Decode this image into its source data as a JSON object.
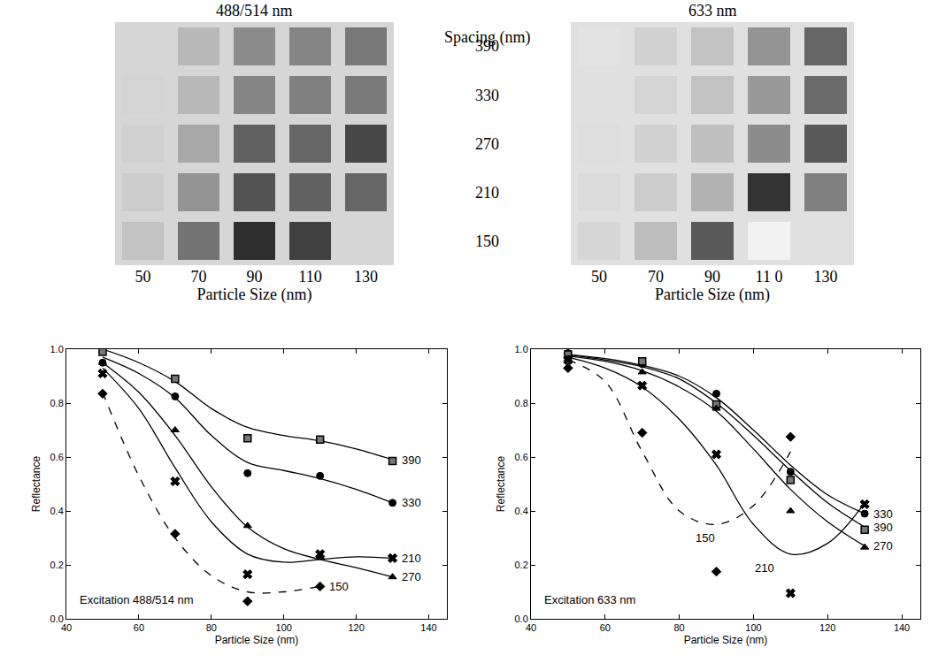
{
  "chart_data": [
    {
      "type": "heatmap",
      "title": "488/514 nm",
      "xlabel": "Particle Size (nm)",
      "ylabel": "Spacing (nm)",
      "categories": [
        "50",
        "70",
        "90",
        "110",
        "130"
      ],
      "rows": [
        390,
        330,
        270,
        210,
        150
      ],
      "cells": [
        [
          0.84,
          0.72,
          0.55,
          0.52,
          0.47
        ],
        [
          0.83,
          0.72,
          0.52,
          0.5,
          0.48
        ],
        [
          0.82,
          0.66,
          0.38,
          0.4,
          0.28
        ],
        [
          0.8,
          0.58,
          0.32,
          0.38,
          0.4
        ],
        [
          0.76,
          0.45,
          0.18,
          0.25,
          null
        ]
      ],
      "zlim": [
        0,
        1
      ],
      "tick_labels": "x"
    },
    {
      "type": "heatmap",
      "title": "633 nm",
      "xlabel": "Particle Size (nm)",
      "categories": [
        "50",
        "70",
        "90",
        "11 0",
        "130"
      ],
      "rows": [
        390,
        330,
        270,
        210,
        150
      ],
      "cells": [
        [
          0.89,
          0.82,
          0.76,
          0.58,
          0.4
        ],
        [
          0.88,
          0.83,
          0.76,
          0.6,
          0.42
        ],
        [
          0.87,
          0.82,
          0.75,
          0.55,
          0.35
        ],
        [
          0.86,
          0.8,
          0.7,
          0.2,
          0.5
        ],
        [
          0.84,
          0.74,
          0.35,
          0.95,
          null
        ]
      ],
      "zlim": [
        0,
        1
      ],
      "tick_labels": "x"
    },
    {
      "type": "scatter",
      "annotation": "Excitation 488/514 nm",
      "xlabel": "Particle Size (nm)",
      "ylabel": "Reflectance",
      "xlim": [
        40,
        145
      ],
      "ylim": [
        0,
        1
      ],
      "xticks": [
        40,
        60,
        80,
        100,
        120,
        140
      ],
      "yticks": [
        {
          "value": 0,
          "label": "0.0"
        },
        {
          "value": 0.2,
          "label": "0.2"
        },
        {
          "value": 0.4,
          "label": "0.4"
        },
        {
          "value": 0.6,
          "label": "0.6"
        },
        {
          "value": 0.8,
          "label": "0.8"
        },
        {
          "value": 1,
          "label": "1.0"
        }
      ],
      "color": "#000000",
      "series": [
        {
          "name": "390",
          "marker": "square",
          "line_style": "solid",
          "x": [
            50,
            70,
            90,
            110,
            130
          ],
          "values": [
            0.99,
            0.89,
            0.67,
            0.665,
            0.585
          ],
          "fit_x": [
            50,
            60,
            70,
            80,
            90,
            100,
            110,
            120,
            130
          ],
          "fit": [
            1.0,
            0.95,
            0.88,
            0.78,
            0.71,
            0.68,
            0.66,
            0.63,
            0.59
          ]
        },
        {
          "name": "330",
          "marker": "circle",
          "line_style": "solid",
          "x": [
            50,
            70,
            90,
            110,
            130
          ],
          "values": [
            0.95,
            0.825,
            0.54,
            0.53,
            0.43
          ],
          "fit_x": [
            50,
            60,
            70,
            80,
            90,
            100,
            110,
            120,
            130
          ],
          "fit": [
            0.97,
            0.91,
            0.82,
            0.68,
            0.58,
            0.55,
            0.52,
            0.48,
            0.43
          ]
        },
        {
          "name": "270",
          "marker": "triangle",
          "line_style": "solid",
          "x": [
            50,
            70,
            90,
            110,
            130
          ],
          "values": [
            0.95,
            0.7,
            0.345,
            0.23,
            0.155
          ],
          "fit_x": [
            50,
            60,
            70,
            80,
            90,
            100,
            110,
            120,
            130
          ],
          "fit": [
            0.95,
            0.84,
            0.68,
            0.49,
            0.34,
            0.26,
            0.22,
            0.19,
            0.155
          ]
        },
        {
          "name": "210",
          "marker": "x",
          "line_style": "solid",
          "x": [
            50,
            70,
            90,
            110,
            130
          ],
          "values": [
            0.91,
            0.51,
            0.165,
            0.24,
            0.225
          ],
          "fit_x": [
            50,
            60,
            70,
            80,
            90,
            100,
            110,
            120,
            130
          ],
          "fit": [
            0.93,
            0.78,
            0.56,
            0.36,
            0.24,
            0.21,
            0.22,
            0.23,
            0.225
          ]
        },
        {
          "name": "150",
          "marker": "diamond",
          "line_style": "dash",
          "x": [
            50,
            70,
            90,
            110
          ],
          "values": [
            0.835,
            0.315,
            0.065,
            0.12
          ],
          "fit_x": [
            50,
            60,
            70,
            80,
            90,
            100,
            110
          ],
          "fit": [
            0.84,
            0.53,
            0.3,
            0.16,
            0.1,
            0.1,
            0.12
          ]
        }
      ]
    },
    {
      "type": "scatter",
      "annotation": "Excitation 633 nm",
      "xlabel": "Particle Size (nm)",
      "ylabel": "Reflectance",
      "xlim": [
        40,
        145
      ],
      "ylim": [
        0,
        1
      ],
      "xticks": [
        40,
        60,
        80,
        100,
        120,
        140
      ],
      "yticks": [
        {
          "value": 0,
          "label": "0.0"
        },
        {
          "value": 0.2,
          "label": "0.2"
        },
        {
          "value": 0.4,
          "label": "0.4"
        },
        {
          "value": 0.6,
          "label": "0.6"
        },
        {
          "value": 0.8,
          "label": "0.8"
        },
        {
          "value": 1,
          "label": "1.0"
        }
      ],
      "color": "#000000",
      "series": [
        {
          "name": "330",
          "marker": "circle",
          "line_style": "solid",
          "x": [
            50,
            70,
            90,
            110,
            130
          ],
          "values": [
            0.985,
            0.945,
            0.835,
            0.545,
            0.39
          ],
          "fit_x": [
            50,
            60,
            70,
            80,
            90,
            100,
            110,
            120,
            130
          ],
          "fit": [
            0.98,
            0.965,
            0.94,
            0.9,
            0.82,
            0.7,
            0.57,
            0.46,
            0.39
          ]
        },
        {
          "name": "390",
          "marker": "square",
          "line_style": "solid",
          "x": [
            50,
            70,
            90,
            110,
            130
          ],
          "values": [
            0.98,
            0.955,
            0.795,
            0.515,
            0.33
          ],
          "fit_x": [
            50,
            60,
            70,
            80,
            90,
            100,
            110,
            120,
            130
          ],
          "fit": [
            0.98,
            0.96,
            0.935,
            0.89,
            0.8,
            0.68,
            0.55,
            0.43,
            0.34
          ]
        },
        {
          "name": "270",
          "marker": "triangle",
          "line_style": "solid",
          "x": [
            50,
            70,
            90,
            110,
            130
          ],
          "values": [
            0.965,
            0.915,
            0.78,
            0.4,
            0.265
          ],
          "fit_x": [
            50,
            60,
            70,
            80,
            90,
            100,
            110,
            120,
            130
          ],
          "fit": [
            0.975,
            0.955,
            0.92,
            0.86,
            0.77,
            0.63,
            0.48,
            0.36,
            0.27
          ]
        },
        {
          "name": "210",
          "marker": "x",
          "line_style": "solid",
          "x": [
            50,
            70,
            90,
            110,
            130
          ],
          "values": [
            0.96,
            0.865,
            0.61,
            0.095,
            0.425
          ],
          "fit_x": [
            50,
            60,
            70,
            80,
            90,
            100,
            110,
            120,
            130
          ],
          "fit": [
            0.97,
            0.93,
            0.86,
            0.74,
            0.57,
            0.35,
            0.24,
            0.28,
            0.43
          ]
        },
        {
          "name": "150",
          "marker": "diamond",
          "line_style": "dash",
          "x": [
            50,
            70,
            90,
            110
          ],
          "values": [
            0.93,
            0.69,
            0.175,
            0.675
          ],
          "fit_x": [
            50,
            60,
            70,
            80,
            90,
            100,
            110
          ],
          "fit": [
            0.96,
            0.88,
            0.62,
            0.4,
            0.35,
            0.42,
            0.62
          ]
        }
      ]
    }
  ]
}
